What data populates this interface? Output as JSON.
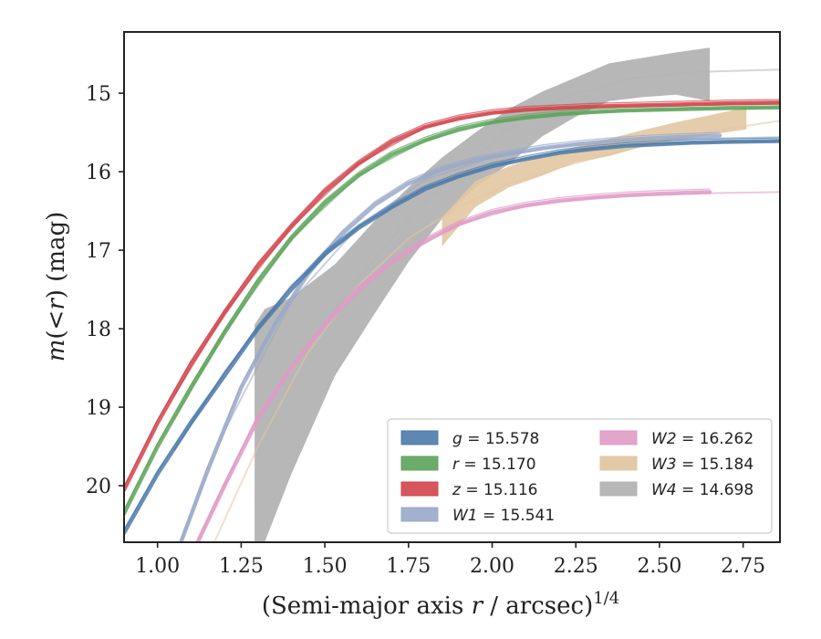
{
  "chart_data": {
    "type": "line",
    "title": "",
    "xlabel": "(Semi-major axis r / arcsec)",
    "xlabel_parts": {
      "main": "(Semi-major axis ",
      "var": "r",
      "rest": " / arcsec)",
      "sup": "1/4"
    },
    "ylabel": "m(< r) (mag)",
    "ylabel_parts": {
      "var": "m",
      "open": "(<",
      "r": "r",
      "close": ") (mag)"
    },
    "xlim": [
      0.9,
      2.86
    ],
    "ylim": [
      20.72,
      14.22
    ],
    "y_inverted": true,
    "grid": false,
    "legend_placement": "lower-right",
    "x_ticks": [
      {
        "value": 1.0,
        "label": "1.00"
      },
      {
        "value": 1.25,
        "label": "1.25"
      },
      {
        "value": 1.5,
        "label": "1.50"
      },
      {
        "value": 1.75,
        "label": "1.75"
      },
      {
        "value": 2.0,
        "label": "2.00"
      },
      {
        "value": 2.25,
        "label": "2.25"
      },
      {
        "value": 2.5,
        "label": "2.50"
      },
      {
        "value": 2.75,
        "label": "2.75"
      }
    ],
    "y_ticks": [
      {
        "value": 15,
        "label": "15"
      },
      {
        "value": 16,
        "label": "16"
      },
      {
        "value": 17,
        "label": "17"
      },
      {
        "value": 18,
        "label": "18"
      },
      {
        "value": 19,
        "label": "19"
      },
      {
        "value": 20,
        "label": "20"
      }
    ],
    "series": [
      {
        "name": "g = 15.578",
        "var": "g",
        "value": "15.578",
        "color": "#4c7aa9",
        "kind": "line",
        "x": [
          0.9,
          1.0,
          1.1,
          1.2,
          1.3,
          1.4,
          1.5,
          1.6,
          1.7,
          1.8,
          1.9,
          2.0,
          2.1,
          2.2,
          2.3,
          2.4,
          2.5,
          2.6,
          2.7,
          2.86
        ],
        "y": [
          20.6,
          19.85,
          19.2,
          18.6,
          18.0,
          17.5,
          17.05,
          16.72,
          16.45,
          16.22,
          16.06,
          15.93,
          15.84,
          15.76,
          15.71,
          15.67,
          15.65,
          15.63,
          15.62,
          15.61
        ],
        "fit": {
          "x": [
            1.05,
            1.2,
            1.4,
            1.6,
            1.8,
            2.0,
            2.2,
            2.4,
            2.6,
            2.86
          ],
          "y": [
            19.55,
            18.55,
            17.45,
            16.7,
            16.2,
            15.92,
            15.75,
            15.66,
            15.63,
            15.61
          ]
        }
      },
      {
        "name": "r = 15.170",
        "var": "r",
        "value": "15.170",
        "color": "#5ca35a",
        "kind": "line",
        "x": [
          0.9,
          1.0,
          1.1,
          1.2,
          1.3,
          1.4,
          1.5,
          1.6,
          1.7,
          1.8,
          1.9,
          2.0,
          2.1,
          2.2,
          2.3,
          2.4,
          2.5,
          2.6,
          2.7,
          2.86
        ],
        "y": [
          20.35,
          19.5,
          18.75,
          18.05,
          17.4,
          16.85,
          16.4,
          16.05,
          15.78,
          15.6,
          15.46,
          15.37,
          15.31,
          15.27,
          15.24,
          15.22,
          15.21,
          15.2,
          15.19,
          15.18
        ],
        "fit": {
          "x": [
            1.05,
            1.2,
            1.4,
            1.6,
            1.8,
            2.0,
            2.2,
            2.4,
            2.6,
            2.86
          ],
          "y": [
            19.15,
            18.05,
            16.85,
            16.05,
            15.6,
            15.37,
            15.27,
            15.22,
            15.2,
            15.18
          ]
        }
      },
      {
        "name": "z = 15.116",
        "var": "z",
        "value": "15.116",
        "color": "#d1444b",
        "kind": "line",
        "x": [
          0.9,
          1.0,
          1.1,
          1.2,
          1.3,
          1.4,
          1.5,
          1.6,
          1.7,
          1.8,
          1.9,
          2.0,
          2.1,
          2.2,
          2.3,
          2.4,
          2.5,
          2.6,
          2.7,
          2.86
        ],
        "y": [
          20.05,
          19.2,
          18.45,
          17.8,
          17.2,
          16.7,
          16.25,
          15.9,
          15.62,
          15.43,
          15.32,
          15.25,
          15.21,
          15.19,
          15.17,
          15.16,
          15.15,
          15.14,
          15.13,
          15.12
        ],
        "fit": {
          "x": [
            1.05,
            1.2,
            1.4,
            1.6,
            1.8,
            2.0,
            2.2,
            2.4,
            2.6,
            2.86
          ],
          "y": [
            18.85,
            17.8,
            16.7,
            15.9,
            15.43,
            15.25,
            15.19,
            15.16,
            15.14,
            15.12
          ]
        }
      },
      {
        "name": "W1 = 15.541",
        "var": "W1",
        "value": "15.541",
        "color": "#9aa9c9",
        "kind": "line",
        "x": [
          1.07,
          1.15,
          1.25,
          1.35,
          1.45,
          1.55,
          1.65,
          1.75,
          1.85,
          1.95,
          2.05,
          2.15,
          2.25,
          2.35,
          2.45,
          2.55,
          2.68
        ],
        "y": [
          20.72,
          19.8,
          18.75,
          17.95,
          17.3,
          16.8,
          16.42,
          16.15,
          15.97,
          15.85,
          15.77,
          15.7,
          15.65,
          15.61,
          15.58,
          15.56,
          15.54
        ],
        "fit": {
          "x": [
            1.07,
            1.2,
            1.4,
            1.6,
            1.8,
            2.0,
            2.2,
            2.4,
            2.6,
            2.86
          ],
          "y": [
            20.72,
            19.3,
            17.65,
            16.7,
            16.1,
            15.82,
            15.68,
            15.61,
            15.58,
            15.56
          ]
        }
      },
      {
        "name": "W2 = 16.262",
        "var": "W2",
        "value": "16.262",
        "color": "#df9bc7",
        "kind": "line",
        "x": [
          1.12,
          1.2,
          1.3,
          1.4,
          1.5,
          1.6,
          1.7,
          1.8,
          1.9,
          2.0,
          2.1,
          2.2,
          2.3,
          2.4,
          2.5,
          2.65
        ],
        "y": [
          20.72,
          20.0,
          19.15,
          18.5,
          17.95,
          17.5,
          17.15,
          16.88,
          16.67,
          16.52,
          16.43,
          16.37,
          16.33,
          16.3,
          16.28,
          16.26
        ],
        "fit": {
          "x": [
            1.12,
            1.3,
            1.5,
            1.7,
            1.9,
            2.1,
            2.3,
            2.5,
            2.7,
            2.86
          ],
          "y": [
            20.72,
            19.1,
            17.95,
            17.15,
            16.67,
            16.43,
            16.33,
            16.29,
            16.27,
            16.26
          ]
        }
      },
      {
        "name": "W3 = 15.184",
        "var": "W3",
        "value": "15.184",
        "color": "#e2c7a2",
        "kind": "band",
        "x": [
          1.85,
          1.95,
          2.05,
          2.15,
          2.25,
          2.35,
          2.45,
          2.55,
          2.65,
          2.76
        ],
        "y_low": [
          16.95,
          16.45,
          16.2,
          16.05,
          15.88,
          15.8,
          15.68,
          15.6,
          15.53,
          15.46
        ],
        "y_high": [
          16.58,
          16.12,
          15.93,
          15.8,
          15.68,
          15.58,
          15.47,
          15.37,
          15.28,
          15.18
        ],
        "fit": {
          "x": [
            1.17,
            1.3,
            1.45,
            1.6,
            1.75,
            1.9,
            2.05,
            2.2,
            2.4,
            2.6,
            2.86
          ],
          "y": [
            20.72,
            19.5,
            18.3,
            17.45,
            16.85,
            16.45,
            16.15,
            15.95,
            15.72,
            15.52,
            15.35
          ]
        }
      },
      {
        "name": "W4 = 14.698",
        "var": "W4",
        "value": "14.698",
        "color": "#b3b3b3",
        "kind": "band",
        "x": [
          1.29,
          1.32,
          1.4,
          1.53,
          1.65,
          1.75,
          1.85,
          1.95,
          2.05,
          2.15,
          2.25,
          2.35,
          2.45,
          2.55,
          2.65
        ],
        "y_low": [
          20.72,
          20.72,
          19.85,
          18.6,
          17.8,
          17.15,
          16.6,
          16.2,
          15.9,
          15.55,
          15.3,
          15.1,
          15.05,
          15.02,
          15.1
        ],
        "y_high": [
          17.95,
          17.75,
          17.6,
          17.18,
          16.62,
          16.2,
          15.82,
          15.5,
          15.2,
          14.98,
          14.8,
          14.62,
          14.55,
          14.48,
          14.42
        ],
        "fit": {
          "x": [
            1.45,
            1.6,
            1.75,
            1.9,
            2.05,
            2.2,
            2.4,
            2.6,
            2.86
          ],
          "y": [
            18.2,
            17.35,
            16.6,
            16.0,
            15.45,
            15.08,
            14.82,
            14.73,
            14.7
          ]
        }
      }
    ]
  }
}
